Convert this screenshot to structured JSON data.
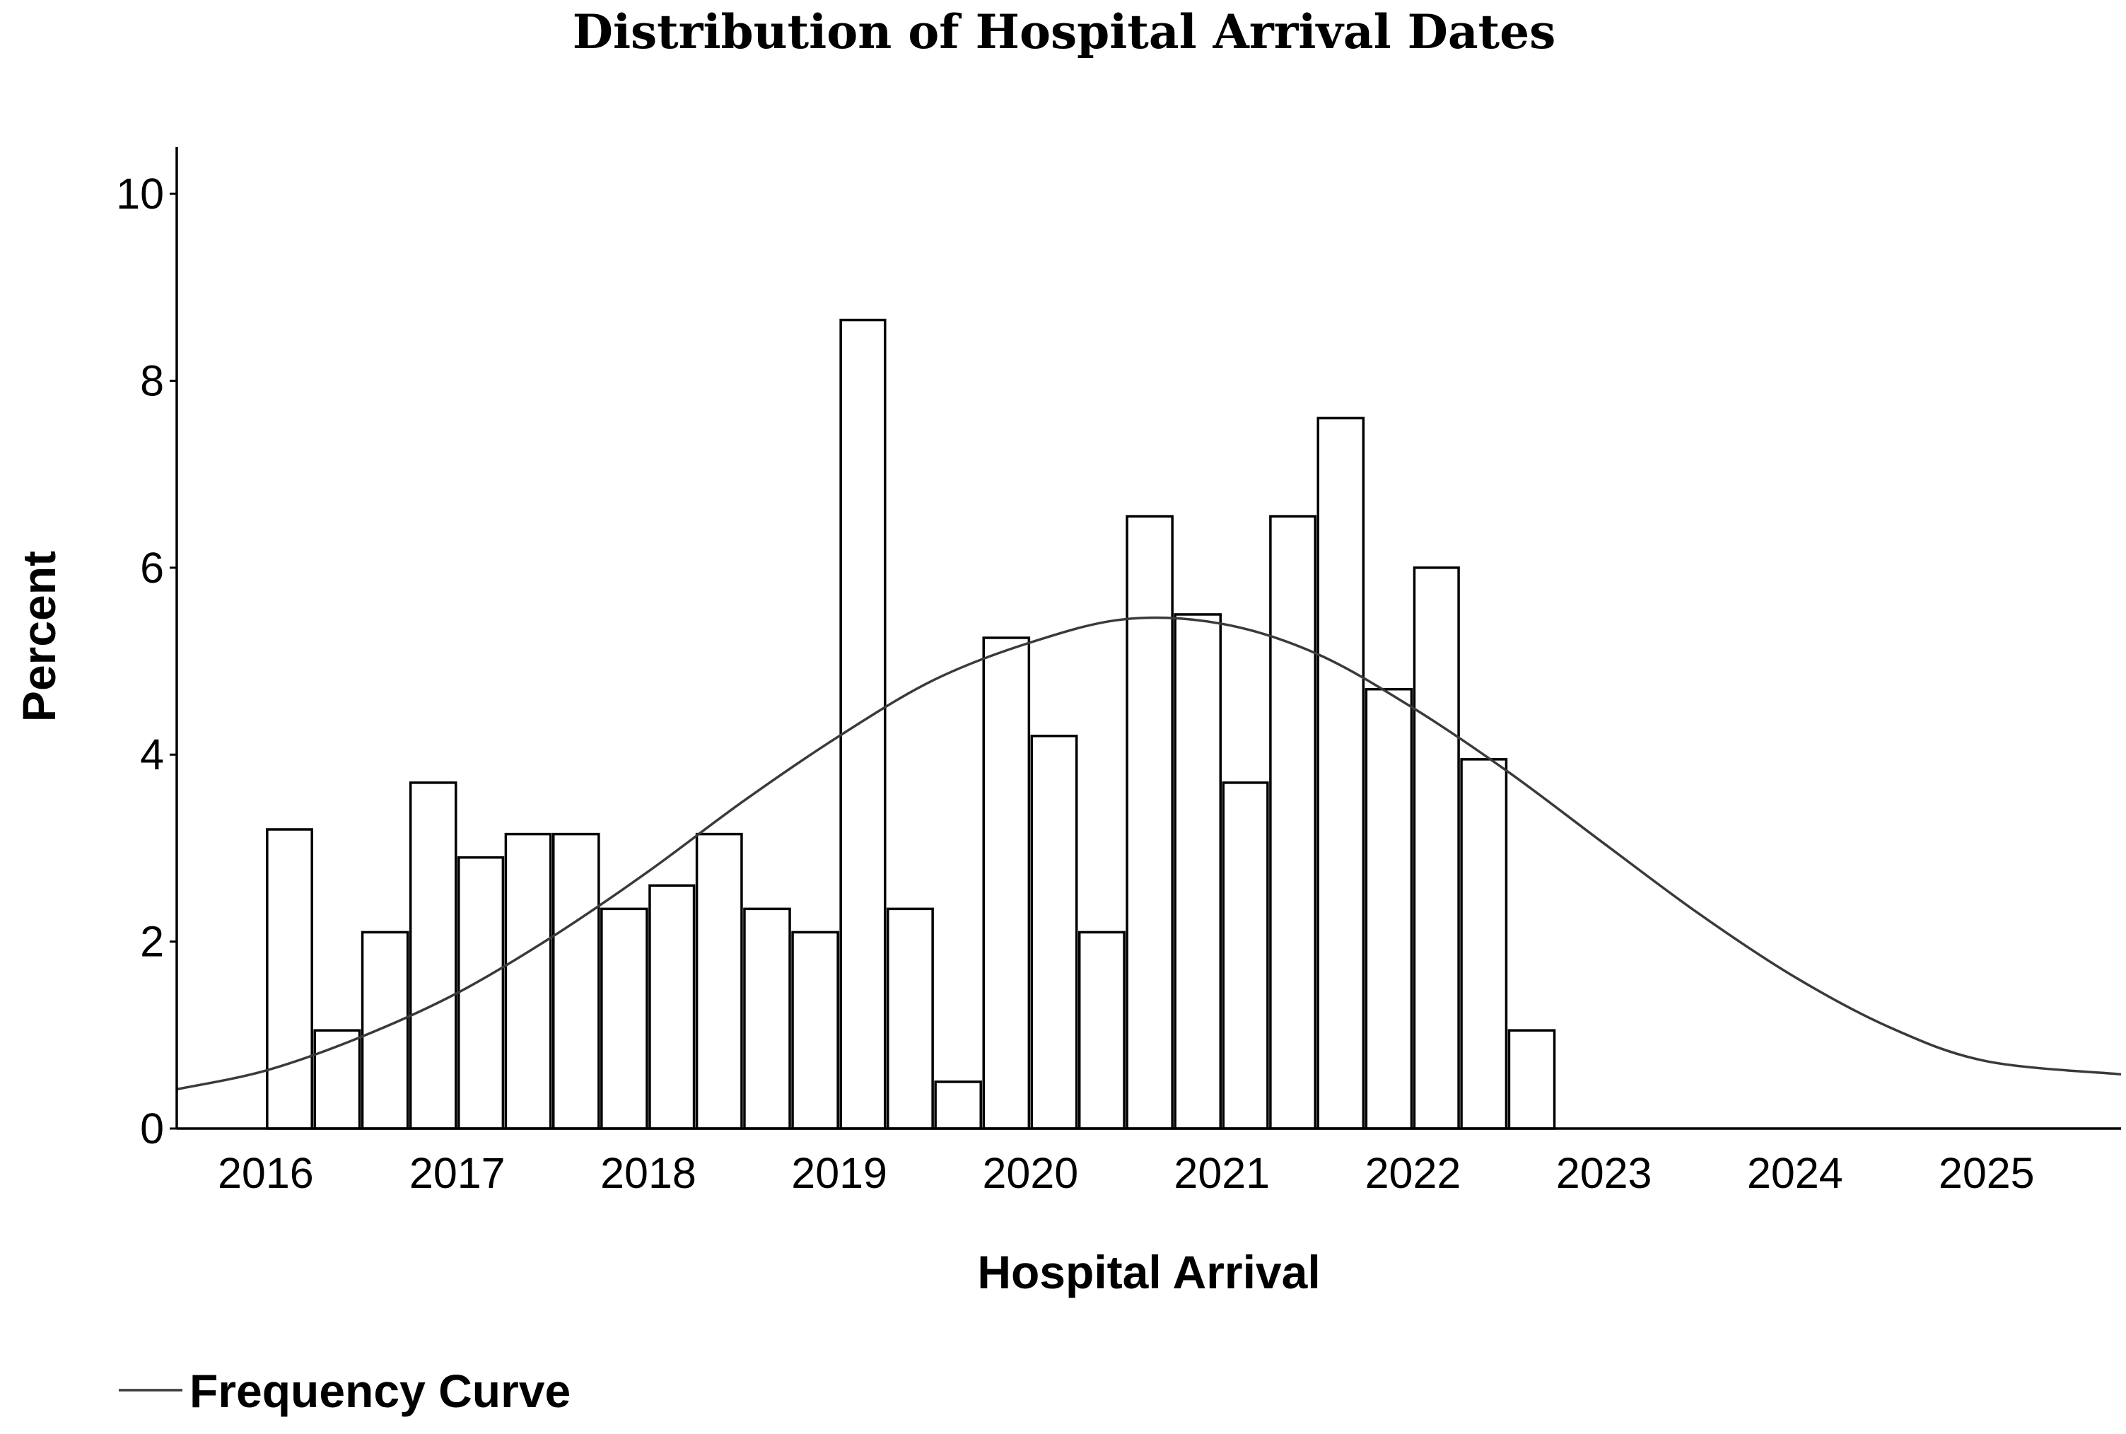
{
  "chart_data": {
    "type": "bar",
    "title": "Distribution of Hospital Arrival Dates",
    "xlabel": "Hospital Arrival",
    "ylabel": "Percent",
    "xlim": [
      "2015-07-15",
      "2025-09-15"
    ],
    "ylim": [
      0,
      10.5
    ],
    "x_ticks": [
      "2016",
      "2017",
      "2018",
      "2019",
      "2020",
      "2021",
      "2022",
      "2023",
      "2024",
      "2025"
    ],
    "y_ticks": [
      0,
      2,
      4,
      6,
      8,
      10
    ],
    "grid": false,
    "bins": [
      {
        "start": "2016-01-01",
        "end": "2016-04-01",
        "value": 3.2
      },
      {
        "start": "2016-04-01",
        "end": "2016-07-01",
        "value": 1.05
      },
      {
        "start": "2016-07-01",
        "end": "2016-10-01",
        "value": 2.1
      },
      {
        "start": "2016-10-01",
        "end": "2017-01-01",
        "value": 3.7
      },
      {
        "start": "2017-01-01",
        "end": "2017-04-01",
        "value": 2.9
      },
      {
        "start": "2017-04-01",
        "end": "2017-07-01",
        "value": 3.15
      },
      {
        "start": "2017-07-01",
        "end": "2017-10-01",
        "value": 3.15
      },
      {
        "start": "2017-10-01",
        "end": "2018-01-01",
        "value": 2.35
      },
      {
        "start": "2018-01-01",
        "end": "2018-04-01",
        "value": 2.6
      },
      {
        "start": "2018-04-01",
        "end": "2018-07-01",
        "value": 3.15
      },
      {
        "start": "2018-07-01",
        "end": "2018-10-01",
        "value": 2.35
      },
      {
        "start": "2018-10-01",
        "end": "2019-01-01",
        "value": 2.1
      },
      {
        "start": "2019-01-01",
        "end": "2019-04-01",
        "value": 8.65
      },
      {
        "start": "2019-04-01",
        "end": "2019-07-01",
        "value": 2.35
      },
      {
        "start": "2019-07-01",
        "end": "2019-10-01",
        "value": 0.5
      },
      {
        "start": "2019-10-01",
        "end": "2020-01-01",
        "value": 5.25
      },
      {
        "start": "2020-01-01",
        "end": "2020-04-01",
        "value": 4.2
      },
      {
        "start": "2020-04-01",
        "end": "2020-07-01",
        "value": 2.1
      },
      {
        "start": "2020-07-01",
        "end": "2020-10-01",
        "value": 6.55
      },
      {
        "start": "2020-10-01",
        "end": "2021-01-01",
        "value": 5.5
      },
      {
        "start": "2021-01-01",
        "end": "2021-04-01",
        "value": 3.7
      },
      {
        "start": "2021-04-01",
        "end": "2021-07-01",
        "value": 6.55
      },
      {
        "start": "2021-07-01",
        "end": "2021-10-01",
        "value": 7.6
      },
      {
        "start": "2021-10-01",
        "end": "2022-01-01",
        "value": 4.7
      },
      {
        "start": "2022-01-01",
        "end": "2022-04-01",
        "value": 6.0
      },
      {
        "start": "2022-04-01",
        "end": "2022-07-01",
        "value": 3.95
      },
      {
        "start": "2022-07-01",
        "end": "2022-10-01",
        "value": 1.05
      }
    ],
    "series": [
      {
        "name": "Frequency Curve",
        "type": "line",
        "x": [
          "2015-07-15",
          "2016-01-01",
          "2016-07-01",
          "2017-01-01",
          "2017-07-01",
          "2018-01-01",
          "2018-07-01",
          "2019-01-01",
          "2019-07-01",
          "2020-01-01",
          "2020-07-01",
          "2021-01-01",
          "2021-07-01",
          "2022-01-01",
          "2022-07-01",
          "2023-01-01",
          "2023-07-01",
          "2024-01-01",
          "2024-07-01",
          "2025-01-01",
          "2025-09-15"
        ],
        "y": [
          0.42,
          0.62,
          0.98,
          1.45,
          2.05,
          2.75,
          3.5,
          4.2,
          4.8,
          5.2,
          5.45,
          5.4,
          5.08,
          4.5,
          3.82,
          3.05,
          2.3,
          1.62,
          1.08,
          0.72,
          0.58
        ]
      }
    ]
  },
  "legend": {
    "label": "Frequency Curve"
  }
}
